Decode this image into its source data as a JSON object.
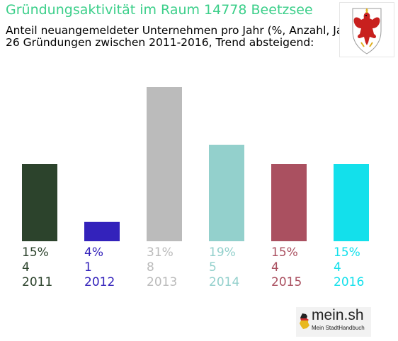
{
  "header": {
    "title": "Gründungsaktivität im Raum 14778 Beetzsee",
    "subtitle_line1": "Anteil neuangemeldeter Unternehmen pro Jahr (%, Anzahl, Jahr)",
    "subtitle_line2": "26 Gründungen zwischen 2011-2016, Trend absteigend:"
  },
  "emblem": {
    "icon": "brandenburg-eagle-coat-of-arms-icon"
  },
  "logo": {
    "text": "mein.sh",
    "sub": "Mein StadtHandbuch",
    "icon": "germany-map-icon"
  },
  "chart_data": {
    "type": "bar",
    "categories": [
      "2011",
      "2012",
      "2013",
      "2014",
      "2015",
      "2016"
    ],
    "percent_labels": [
      "15%",
      "4%",
      "31%",
      "19%",
      "15%",
      "15%"
    ],
    "count_labels": [
      "4",
      "1",
      "8",
      "5",
      "4",
      "4"
    ],
    "values": [
      4,
      1,
      8,
      5,
      4,
      4
    ],
    "colors": [
      "#2c432c",
      "#3322bb",
      "#bbbbbb",
      "#93d0cc",
      "#aa5060",
      "#13e0eb"
    ],
    "ylim": [
      0,
      8
    ],
    "grid": false,
    "legend": "none"
  }
}
